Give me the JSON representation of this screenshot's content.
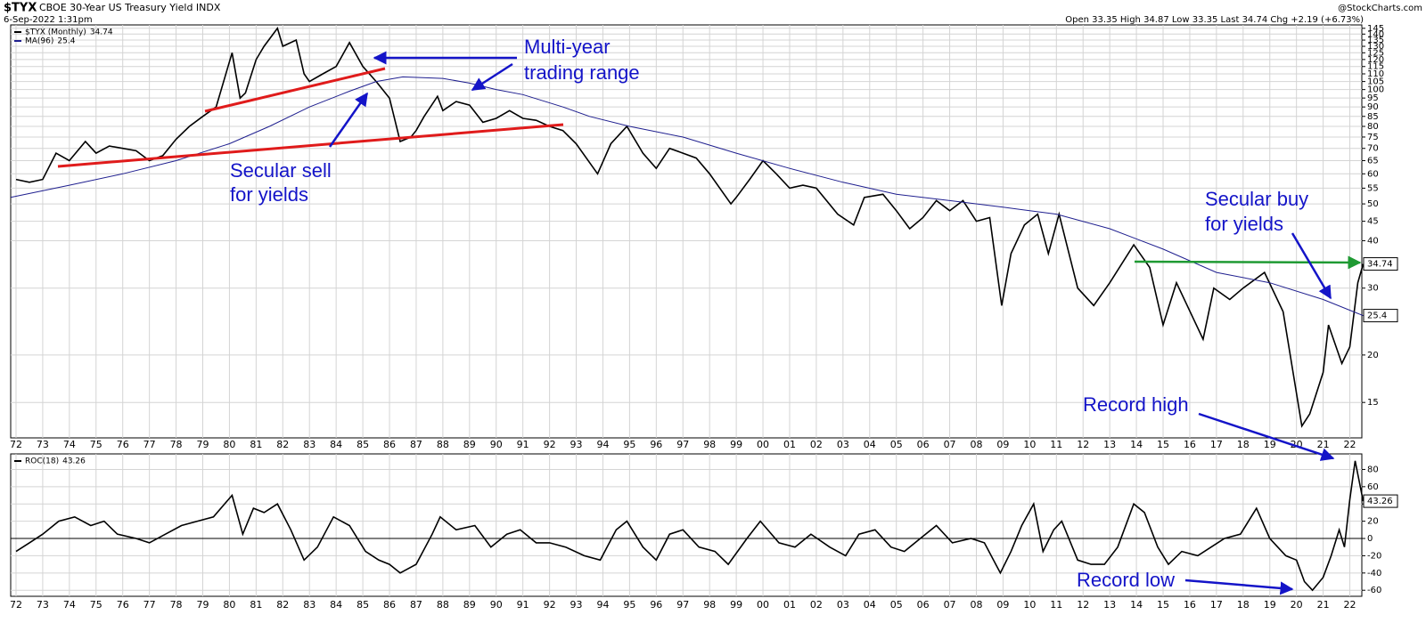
{
  "header": {
    "symbol": "$TYX",
    "title": "CBOE 30-Year US Treasury Yield INDX",
    "date": "6-Sep-2022 1:31pm",
    "source": "@StockCharts.com",
    "quote": "Open 33.35  High 34.87  Low 33.35  Last 34.74  Chg +2.19 (+6.73%)"
  },
  "annotations": [
    [
      "Multi-year",
      "trading range"
    ],
    [
      "Secular sell",
      "for yields"
    ],
    [
      "Secular buy",
      "for yields"
    ],
    [
      "Record high"
    ],
    [
      "Record low"
    ]
  ],
  "chart_data": [
    {
      "type": "line",
      "yscale": "log",
      "grid": true,
      "xlim": [
        1971.8,
        2022.45
      ],
      "ylim": [
        12.1,
        148
      ],
      "xticks": [
        {
          "value": 1972,
          "label": "72"
        },
        {
          "value": 1973,
          "label": "73"
        },
        {
          "value": 1974,
          "label": "74"
        },
        {
          "value": 1975,
          "label": "75"
        },
        {
          "value": 1976,
          "label": "76"
        },
        {
          "value": 1977,
          "label": "77"
        },
        {
          "value": 1978,
          "label": "78"
        },
        {
          "value": 1979,
          "label": "79"
        },
        {
          "value": 1980,
          "label": "80"
        },
        {
          "value": 1981,
          "label": "81"
        },
        {
          "value": 1982,
          "label": "82"
        },
        {
          "value": 1983,
          "label": "83"
        },
        {
          "value": 1984,
          "label": "84"
        },
        {
          "value": 1985,
          "label": "85"
        },
        {
          "value": 1986,
          "label": "86"
        },
        {
          "value": 1987,
          "label": "87"
        },
        {
          "value": 1988,
          "label": "88"
        },
        {
          "value": 1989,
          "label": "89"
        },
        {
          "value": 1990,
          "label": "90"
        },
        {
          "value": 1991,
          "label": "91"
        },
        {
          "value": 1992,
          "label": "92"
        },
        {
          "value": 1993,
          "label": "93"
        },
        {
          "value": 1994,
          "label": "94"
        },
        {
          "value": 1995,
          "label": "95"
        },
        {
          "value": 1996,
          "label": "96"
        },
        {
          "value": 1997,
          "label": "97"
        },
        {
          "value": 1998,
          "label": "98"
        },
        {
          "value": 1999,
          "label": "99"
        },
        {
          "value": 2000,
          "label": "00"
        },
        {
          "value": 2001,
          "label": "01"
        },
        {
          "value": 2002,
          "label": "02"
        },
        {
          "value": 2003,
          "label": "03"
        },
        {
          "value": 2004,
          "label": "04"
        },
        {
          "value": 2005,
          "label": "05"
        },
        {
          "value": 2006,
          "label": "06"
        },
        {
          "value": 2007,
          "label": "07"
        },
        {
          "value": 2008,
          "label": "08"
        },
        {
          "value": 2009,
          "label": "09"
        },
        {
          "value": 2010,
          "label": "10"
        },
        {
          "value": 2011,
          "label": "11"
        },
        {
          "value": 2012,
          "label": "12"
        },
        {
          "value": 2013,
          "label": "13"
        },
        {
          "value": 2014,
          "label": "14"
        },
        {
          "value": 2015,
          "label": "15"
        },
        {
          "value": 2016,
          "label": "16"
        },
        {
          "value": 2017,
          "label": "17"
        },
        {
          "value": 2018,
          "label": "18"
        },
        {
          "value": 2019,
          "label": "19"
        },
        {
          "value": 2020,
          "label": "20"
        },
        {
          "value": 2021,
          "label": "21"
        },
        {
          "value": 2022,
          "label": "22"
        }
      ],
      "yticks": [
        15,
        20,
        30,
        40,
        45,
        50,
        55,
        60,
        65,
        70,
        75,
        80,
        85,
        90,
        95,
        100,
        105,
        110,
        115,
        120,
        125,
        130,
        135,
        140,
        145
      ],
      "series": [
        {
          "name": "$TYX (Monthly)",
          "color": "#000000",
          "x": [
            1972.0,
            1972.5,
            1973.0,
            1973.5,
            1974.0,
            1974.6,
            1975.0,
            1975.5,
            1976.0,
            1976.5,
            1977.0,
            1977.5,
            1978.0,
            1978.5,
            1979.0,
            1979.5,
            1980.1,
            1980.4,
            1980.6,
            1981.0,
            1981.3,
            1981.8,
            1982.0,
            1982.5,
            1982.8,
            1983.0,
            1983.5,
            1984.0,
            1984.5,
            1985.0,
            1985.5,
            1986.0,
            1986.4,
            1986.8,
            1987.0,
            1987.3,
            1987.8,
            1988.0,
            1988.5,
            1989.0,
            1989.5,
            1990.0,
            1990.5,
            1991.0,
            1991.5,
            1992.0,
            1992.5,
            1993.0,
            1993.8,
            1994.3,
            1994.9,
            1995.5,
            1996.0,
            1996.5,
            1997.0,
            1997.5,
            1998.0,
            1998.8,
            1999.0,
            1999.5,
            2000.0,
            2000.5,
            2001.0,
            2001.5,
            2002.0,
            2002.8,
            2003.4,
            2003.8,
            2004.5,
            2005.0,
            2005.5,
            2006.0,
            2006.5,
            2007.0,
            2007.5,
            2008.0,
            2008.5,
            2008.95,
            2009.3,
            2009.8,
            2010.3,
            2010.7,
            2011.1,
            2011.8,
            2012.4,
            2013.0,
            2013.9,
            2014.5,
            2015.0,
            2015.5,
            2016.5,
            2016.9,
            2017.5,
            2018.0,
            2018.8,
            2019.5,
            2020.2,
            2020.5,
            2021.0,
            2021.2,
            2021.7,
            2022.0,
            2022.3,
            2022.5
          ],
          "values": [
            58,
            57,
            58,
            68,
            65,
            73,
            68,
            71,
            70,
            69,
            65,
            67,
            74,
            80,
            85,
            90,
            125,
            95,
            98,
            120,
            130,
            145,
            130,
            135,
            110,
            105,
            110,
            115,
            133,
            115,
            105,
            95,
            73,
            75,
            78,
            85,
            96,
            88,
            93,
            91,
            82,
            84,
            88,
            84,
            83,
            80,
            78,
            72,
            60,
            72,
            80,
            68,
            62,
            70,
            68,
            66,
            60,
            50,
            52,
            58,
            65,
            60,
            55,
            56,
            55,
            47,
            44,
            52,
            53,
            48,
            43,
            46,
            51,
            48,
            51,
            45,
            46,
            27,
            37,
            44,
            47,
            37,
            47,
            30,
            27,
            31,
            39,
            34,
            24,
            31,
            22,
            30,
            28,
            30,
            33,
            26,
            13,
            14,
            18,
            24,
            19,
            21,
            31,
            34.74
          ]
        },
        {
          "name": "MA(96)",
          "color": "#1f1f8f",
          "x": [
            1971.8,
            1974.0,
            1976.0,
            1978.0,
            1980.0,
            1981.5,
            1983.0,
            1984.5,
            1985.5,
            1986.5,
            1988.0,
            1989.0,
            1990.0,
            1991.0,
            1992.5,
            1993.5,
            1995.0,
            1997.0,
            1999.0,
            2001.0,
            2003.0,
            2005.0,
            2007.0,
            2009.0,
            2011.0,
            2013.0,
            2015.0,
            2017.0,
            2019.0,
            2021.0,
            2022.5
          ],
          "values": [
            52,
            56,
            60,
            65,
            72,
            80,
            90,
            99,
            105,
            108,
            107,
            104,
            100,
            97,
            90,
            85,
            80,
            75,
            68,
            62,
            57,
            53,
            51,
            49,
            47,
            43,
            38,
            33,
            31,
            28,
            25.4
          ]
        }
      ]
    },
    {
      "type": "line",
      "grid": true,
      "xlim": [
        1971.8,
        2022.45
      ],
      "ylim": [
        -67,
        98
      ],
      "xticks": [
        {
          "value": 1972,
          "label": "72"
        },
        {
          "value": 1973,
          "label": "73"
        },
        {
          "value": 1974,
          "label": "74"
        },
        {
          "value": 1975,
          "label": "75"
        },
        {
          "value": 1976,
          "label": "76"
        },
        {
          "value": 1977,
          "label": "77"
        },
        {
          "value": 1978,
          "label": "78"
        },
        {
          "value": 1979,
          "label": "79"
        },
        {
          "value": 1980,
          "label": "80"
        },
        {
          "value": 1981,
          "label": "81"
        },
        {
          "value": 1982,
          "label": "82"
        },
        {
          "value": 1983,
          "label": "83"
        },
        {
          "value": 1984,
          "label": "84"
        },
        {
          "value": 1985,
          "label": "85"
        },
        {
          "value": 1986,
          "label": "86"
        },
        {
          "value": 1987,
          "label": "87"
        },
        {
          "value": 1988,
          "label": "88"
        },
        {
          "value": 1989,
          "label": "89"
        },
        {
          "value": 1990,
          "label": "90"
        },
        {
          "value": 1991,
          "label": "91"
        },
        {
          "value": 1992,
          "label": "92"
        },
        {
          "value": 1993,
          "label": "93"
        },
        {
          "value": 1994,
          "label": "94"
        },
        {
          "value": 1995,
          "label": "95"
        },
        {
          "value": 1996,
          "label": "96"
        },
        {
          "value": 1997,
          "label": "97"
        },
        {
          "value": 1998,
          "label": "98"
        },
        {
          "value": 1999,
          "label": "99"
        },
        {
          "value": 2000,
          "label": "00"
        },
        {
          "value": 2001,
          "label": "01"
        },
        {
          "value": 2002,
          "label": "02"
        },
        {
          "value": 2003,
          "label": "03"
        },
        {
          "value": 2004,
          "label": "04"
        },
        {
          "value": 2005,
          "label": "05"
        },
        {
          "value": 2006,
          "label": "06"
        },
        {
          "value": 2007,
          "label": "07"
        },
        {
          "value": 2008,
          "label": "08"
        },
        {
          "value": 2009,
          "label": "09"
        },
        {
          "value": 2010,
          "label": "10"
        },
        {
          "value": 2011,
          "label": "11"
        },
        {
          "value": 2012,
          "label": "12"
        },
        {
          "value": 2013,
          "label": "13"
        },
        {
          "value": 2014,
          "label": "14"
        },
        {
          "value": 2015,
          "label": "15"
        },
        {
          "value": 2016,
          "label": "16"
        },
        {
          "value": 2017,
          "label": "17"
        },
        {
          "value": 2018,
          "label": "18"
        },
        {
          "value": 2019,
          "label": "19"
        },
        {
          "value": 2020,
          "label": "20"
        },
        {
          "value": 2021,
          "label": "21"
        },
        {
          "value": 2022,
          "label": "22"
        }
      ],
      "yticks": [
        80,
        60,
        40,
        20,
        0,
        -20,
        -40,
        -60
      ],
      "series": [
        {
          "name": "ROC(18)",
          "color": "#000000",
          "x": [
            1972.0,
            1972.5,
            1973.0,
            1973.6,
            1974.2,
            1974.8,
            1975.3,
            1975.8,
            1976.5,
            1977.0,
            1977.6,
            1978.2,
            1978.8,
            1979.4,
            1980.1,
            1980.5,
            1980.9,
            1981.3,
            1981.8,
            1982.3,
            1982.8,
            1983.3,
            1983.9,
            1984.5,
            1985.1,
            1985.6,
            1986.0,
            1986.4,
            1987.0,
            1987.6,
            1987.9,
            1988.5,
            1989.2,
            1989.8,
            1990.4,
            1990.9,
            1991.5,
            1992.0,
            1992.6,
            1993.3,
            1993.9,
            1994.5,
            1994.9,
            1995.5,
            1996.0,
            1996.5,
            1997.0,
            1997.6,
            1998.2,
            1998.7,
            1999.4,
            1999.9,
            2000.6,
            2001.2,
            2001.8,
            2002.5,
            2003.1,
            2003.6,
            2004.2,
            2004.8,
            2005.3,
            2005.9,
            2006.5,
            2007.1,
            2007.8,
            2008.3,
            2008.9,
            2009.3,
            2009.7,
            2010.15,
            2010.5,
            2010.9,
            2011.2,
            2011.8,
            2012.3,
            2012.8,
            2013.3,
            2013.9,
            2014.3,
            2014.8,
            2015.2,
            2015.7,
            2016.3,
            2016.8,
            2017.3,
            2017.9,
            2018.5,
            2019.0,
            2019.6,
            2020.0,
            2020.3,
            2020.6,
            2021.0,
            2021.3,
            2021.6,
            2021.8,
            2022.0,
            2022.2,
            2022.5
          ],
          "values": [
            -15,
            -5,
            5,
            20,
            25,
            15,
            20,
            5,
            0,
            -5,
            5,
            15,
            20,
            25,
            50,
            5,
            35,
            30,
            40,
            10,
            -25,
            -10,
            25,
            15,
            -15,
            -25,
            -30,
            -40,
            -30,
            5,
            25,
            10,
            15,
            -10,
            5,
            10,
            -5,
            -5,
            -10,
            -20,
            -25,
            10,
            20,
            -10,
            -25,
            5,
            10,
            -10,
            -15,
            -30,
            0,
            20,
            -5,
            -10,
            5,
            -10,
            -20,
            5,
            10,
            -10,
            -15,
            0,
            15,
            -5,
            0,
            -5,
            -40,
            -15,
            15,
            40,
            -15,
            10,
            20,
            -25,
            -30,
            -30,
            -10,
            40,
            30,
            -10,
            -30,
            -15,
            -20,
            -10,
            0,
            5,
            35,
            0,
            -20,
            -25,
            -50,
            -60,
            -45,
            -20,
            10,
            -10,
            45,
            90,
            43.26
          ]
        }
      ]
    }
  ]
}
